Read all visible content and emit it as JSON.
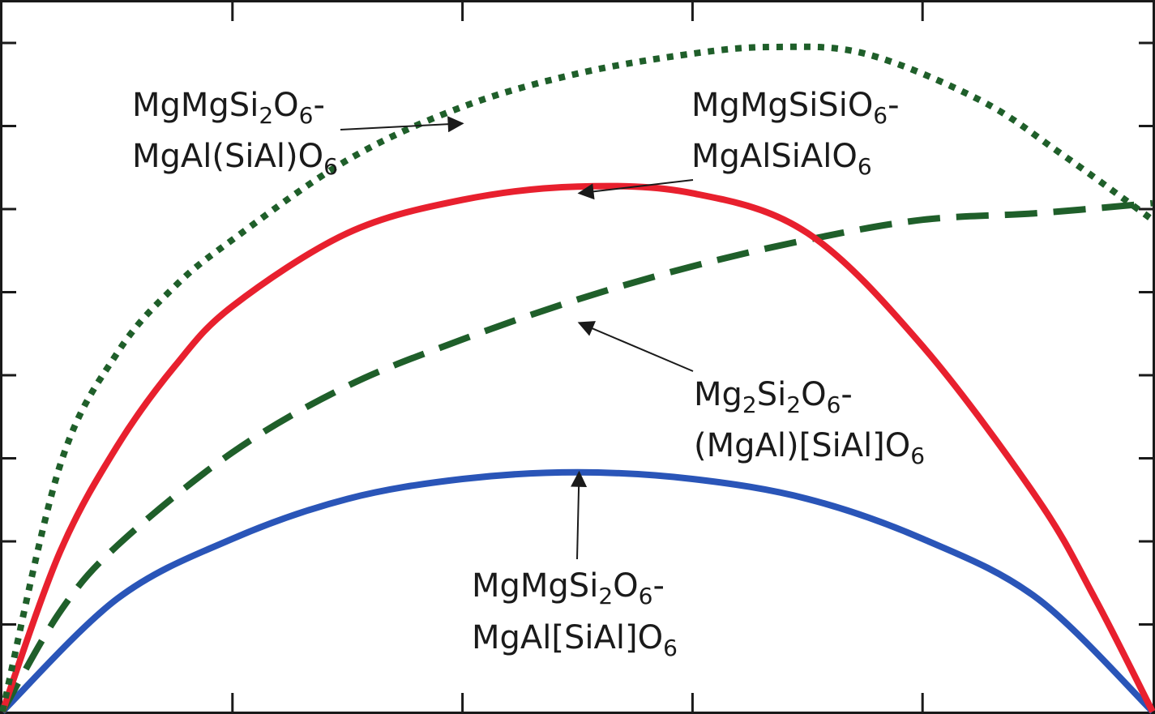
{
  "chart_data": {
    "type": "line",
    "title": "",
    "xlabel": "",
    "ylabel": "",
    "xlim": [
      0,
      1
    ],
    "ylim": [
      0,
      1
    ],
    "x_ticks": [
      0,
      0.2,
      0.4,
      0.6,
      0.8,
      1.0
    ],
    "y_ticks": [
      0.125,
      0.25,
      0.375,
      0.5,
      0.625,
      0.75,
      0.875,
      1.0
    ],
    "grid": false,
    "series": [
      {
        "id": "mgmgsi2o6-mgal-sial-o6",
        "color": "#1f5f2a",
        "style": "dotted",
        "points": [
          [
            0,
            0
          ],
          [
            0.05,
            0.37
          ],
          [
            0.1,
            0.54
          ],
          [
            0.15,
            0.64
          ],
          [
            0.2,
            0.71
          ],
          [
            0.3,
            0.83
          ],
          [
            0.4,
            0.91
          ],
          [
            0.5,
            0.96
          ],
          [
            0.6,
            0.99
          ],
          [
            0.67,
            1.0
          ],
          [
            0.75,
            0.99
          ],
          [
            0.85,
            0.92
          ],
          [
            0.92,
            0.84
          ],
          [
            1.0,
            0.74
          ]
        ]
      },
      {
        "id": "mgmgsisio6-mgalsialo6",
        "color": "#e8202e",
        "style": "solid",
        "points": [
          [
            0,
            0
          ],
          [
            0.05,
            0.24
          ],
          [
            0.1,
            0.4
          ],
          [
            0.15,
            0.52
          ],
          [
            0.2,
            0.61
          ],
          [
            0.3,
            0.72
          ],
          [
            0.4,
            0.77
          ],
          [
            0.5,
            0.79
          ],
          [
            0.6,
            0.78
          ],
          [
            0.7,
            0.72
          ],
          [
            0.8,
            0.55
          ],
          [
            0.9,
            0.32
          ],
          [
            0.95,
            0.17
          ],
          [
            1.0,
            0
          ]
        ]
      },
      {
        "id": "mg2si2o6-mgal-sial-o6",
        "color": "#1f5f2a",
        "style": "dashed",
        "points": [
          [
            0,
            0
          ],
          [
            0.05,
            0.15
          ],
          [
            0.1,
            0.25
          ],
          [
            0.2,
            0.39
          ],
          [
            0.3,
            0.49
          ],
          [
            0.4,
            0.56
          ],
          [
            0.5,
            0.62
          ],
          [
            0.6,
            0.67
          ],
          [
            0.7,
            0.71
          ],
          [
            0.8,
            0.74
          ],
          [
            0.9,
            0.75
          ],
          [
            1.0,
            0.765
          ]
        ]
      },
      {
        "id": "mgmgsi2o6-mgal-sial-o6-b",
        "color": "#2a55b8",
        "style": "solid",
        "points": [
          [
            0,
            0
          ],
          [
            0.1,
            0.17
          ],
          [
            0.2,
            0.26
          ],
          [
            0.3,
            0.32
          ],
          [
            0.4,
            0.35
          ],
          [
            0.5,
            0.36
          ],
          [
            0.6,
            0.35
          ],
          [
            0.7,
            0.32
          ],
          [
            0.8,
            0.26
          ],
          [
            0.9,
            0.17
          ],
          [
            1.0,
            0
          ]
        ]
      }
    ],
    "annotations": [
      {
        "label_line1": "MgMgSi",
        "s1": "2",
        "b1": "O",
        "s2": "6",
        "t1": "-",
        "label_line2": "MgAl(SiAl)O",
        "s3": "6",
        "arrow_to": [
          0.4,
          0.885
        ]
      },
      {
        "label_line1": "MgMgSiSiO",
        "s1": "6",
        "t1": "-",
        "label_line2": "MgAlSiAlO",
        "s2": "6",
        "arrow_to": [
          0.5,
          0.78
        ]
      },
      {
        "label_line1": "Mg",
        "s1": "2",
        "b1": "Si",
        "s2": "2",
        "b2": "O",
        "s3": "6",
        "t1": "-",
        "label_line2": "(MgAl)[SiAl]O",
        "s4": "6",
        "arrow_to": [
          0.5,
          0.585
        ]
      },
      {
        "label_line1": "MgMgSi",
        "s1": "2",
        "b1": "O",
        "s2": "6",
        "t1": "-",
        "label_line2": "MgAl[SiAl]O",
        "s3": "6",
        "arrow_to": [
          0.5,
          0.36
        ]
      }
    ]
  }
}
